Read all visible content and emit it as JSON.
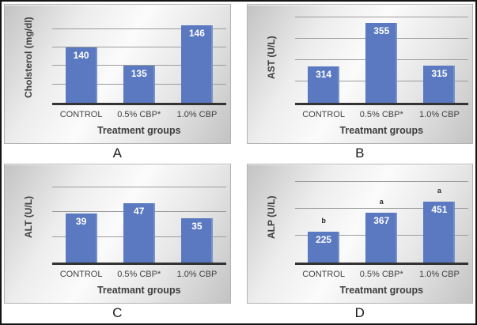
{
  "colors": {
    "bar": "#5a79c0",
    "grid": "#9c9c9c",
    "axis": "#333333",
    "bar_label": "#ffffff",
    "text": "#3d3d3d",
    "chart_bg_dark": "#c3c3c3",
    "chart_bg_light": "#fbfbfb",
    "figure_border": "#141414"
  },
  "chart_data": [
    {
      "type": "bar",
      "panel_label": "A",
      "ylabel": "Cholsterol (mg/dl)",
      "xlabel": "Treatment groups",
      "categories": [
        "CONTROL",
        "0.5% CBP*",
        "1.0% CBP"
      ],
      "values": [
        140,
        135,
        146
      ],
      "ylim": [
        125,
        149
      ],
      "gridlines": [
        130,
        135,
        140,
        145
      ],
      "grid": "on",
      "legend": "none"
    },
    {
      "type": "bar",
      "panel_label": "B",
      "ylabel": "AST (U/L)",
      "xlabel": "Treatmant groups",
      "categories": [
        "CONTROL",
        "0.5% CBP*",
        "1.0% CBP"
      ],
      "values": [
        314,
        355,
        315
      ],
      "ylim": [
        280,
        363
      ],
      "gridlines": [
        300,
        320,
        340,
        360
      ],
      "grid": "on",
      "legend": "none"
    },
    {
      "type": "bar",
      "panel_label": "C",
      "ylabel": "ALT (U/L)",
      "xlabel": "Treatmant groups",
      "categories": [
        "CONTROL",
        "0.5% CBP*",
        "1.0% CBP"
      ],
      "values": [
        39,
        47,
        35
      ],
      "ylim": [
        0,
        71
      ],
      "gridlines": [
        20,
        40,
        60
      ],
      "grid": "on",
      "legend": "none"
    },
    {
      "type": "bar",
      "panel_label": "D",
      "ylabel": "ALP (U/L)",
      "xlabel": "Treatmant groups",
      "categories": [
        "CONTROL",
        "0.5% CBP*",
        "1.0% CBP"
      ],
      "values": [
        225,
        367,
        451
      ],
      "annotations": [
        "b",
        "a",
        "a"
      ],
      "ylim": [
        0,
        660
      ],
      "gridlines": [
        200,
        400,
        600
      ],
      "grid": "on",
      "legend": "none"
    }
  ]
}
